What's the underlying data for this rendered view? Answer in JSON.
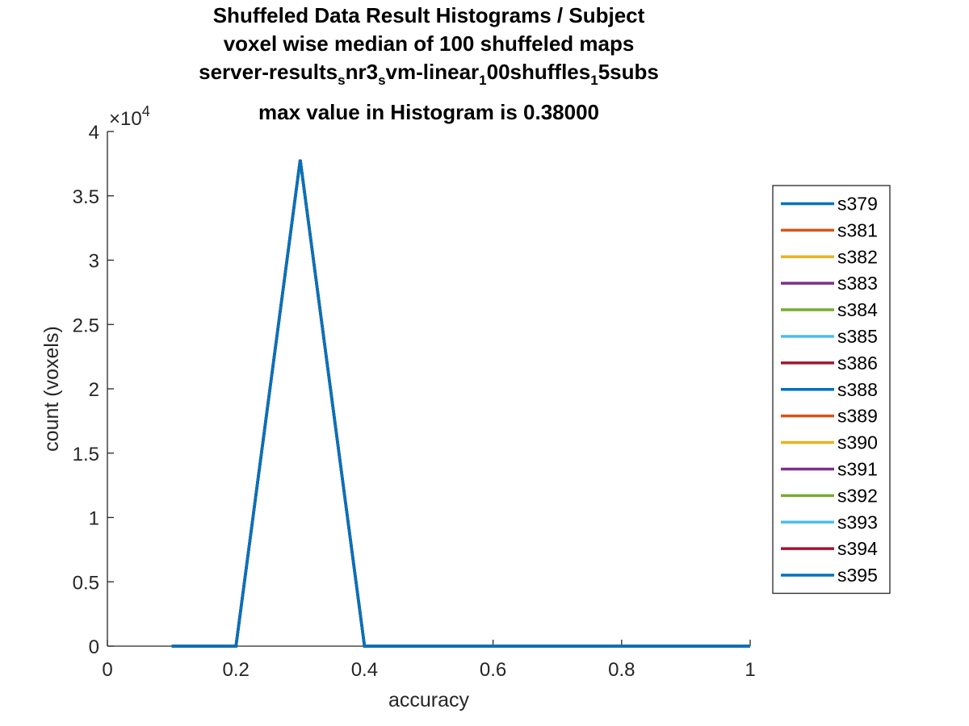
{
  "chart_data": {
    "type": "line",
    "title": [
      "Shuffeled Data Result Histograms / Subject",
      "voxel wise median of 100 shuffeled maps",
      [
        "server-results",
        "s",
        "nr3",
        "s",
        "vm-linear",
        "1",
        "00shuffles",
        "1",
        "5subs"
      ],
      "max value in Histogram is 0.38000"
    ],
    "xlabel": "accuracy",
    "ylabel": "count (voxels)",
    "xlim": [
      0,
      1
    ],
    "ylim": [
      0,
      40000
    ],
    "xticks": [
      0,
      0.2,
      0.4,
      0.6,
      0.8,
      1
    ],
    "xtick_labels": [
      "0",
      "0.2",
      "0.4",
      "0.6",
      "0.8",
      "1"
    ],
    "yticks": [
      0,
      5000,
      10000,
      15000,
      20000,
      25000,
      30000,
      35000,
      40000
    ],
    "ytick_labels": [
      "0",
      "0.5",
      "1",
      "1.5",
      "2",
      "2.5",
      "3",
      "3.5",
      "4"
    ],
    "y_exponent_base": "×10",
    "y_exponent_power": "4",
    "grid": false,
    "legend_position": "outside-right",
    "x": [
      0.1,
      0.2,
      0.3,
      0.4,
      0.5,
      0.6,
      0.7,
      0.8,
      0.9,
      1.0
    ],
    "series": [
      {
        "name": "s379",
        "color": "#0072BD",
        "values": [
          0,
          0,
          37800,
          0,
          0,
          0,
          0,
          0,
          0,
          0
        ]
      },
      {
        "name": "s381",
        "color": "#D95319",
        "values": [
          0,
          0,
          37800,
          0,
          0,
          0,
          0,
          0,
          0,
          0
        ]
      },
      {
        "name": "s382",
        "color": "#EDB120",
        "values": [
          0,
          0,
          37800,
          0,
          0,
          0,
          0,
          0,
          0,
          0
        ]
      },
      {
        "name": "s383",
        "color": "#7E2F8E",
        "values": [
          0,
          0,
          37800,
          0,
          0,
          0,
          0,
          0,
          0,
          0
        ]
      },
      {
        "name": "s384",
        "color": "#77AC30",
        "values": [
          0,
          0,
          37800,
          0,
          0,
          0,
          0,
          0,
          0,
          0
        ]
      },
      {
        "name": "s385",
        "color": "#4DBEEE",
        "values": [
          0,
          0,
          37800,
          0,
          0,
          0,
          0,
          0,
          0,
          0
        ]
      },
      {
        "name": "s386",
        "color": "#A2142F",
        "values": [
          0,
          0,
          37800,
          0,
          0,
          0,
          0,
          0,
          0,
          0
        ]
      },
      {
        "name": "s388",
        "color": "#0072BD",
        "values": [
          0,
          0,
          37800,
          0,
          0,
          0,
          0,
          0,
          0,
          0
        ]
      },
      {
        "name": "s389",
        "color": "#D95319",
        "values": [
          0,
          0,
          37800,
          0,
          0,
          0,
          0,
          0,
          0,
          0
        ]
      },
      {
        "name": "s390",
        "color": "#EDB120",
        "values": [
          0,
          0,
          37800,
          0,
          0,
          0,
          0,
          0,
          0,
          0
        ]
      },
      {
        "name": "s391",
        "color": "#7E2F8E",
        "values": [
          0,
          0,
          37800,
          0,
          0,
          0,
          0,
          0,
          0,
          0
        ]
      },
      {
        "name": "s392",
        "color": "#77AC30",
        "values": [
          0,
          0,
          37800,
          0,
          0,
          0,
          0,
          0,
          0,
          0
        ]
      },
      {
        "name": "s393",
        "color": "#4DBEEE",
        "values": [
          0,
          0,
          37800,
          0,
          0,
          0,
          0,
          0,
          0,
          0
        ]
      },
      {
        "name": "s394",
        "color": "#A2142F",
        "values": [
          0,
          0,
          37800,
          0,
          0,
          0,
          0,
          0,
          0,
          0
        ]
      },
      {
        "name": "s395",
        "color": "#0072BD",
        "values": [
          0,
          0,
          37800,
          0,
          0,
          0,
          0,
          0,
          0,
          0
        ]
      }
    ]
  }
}
